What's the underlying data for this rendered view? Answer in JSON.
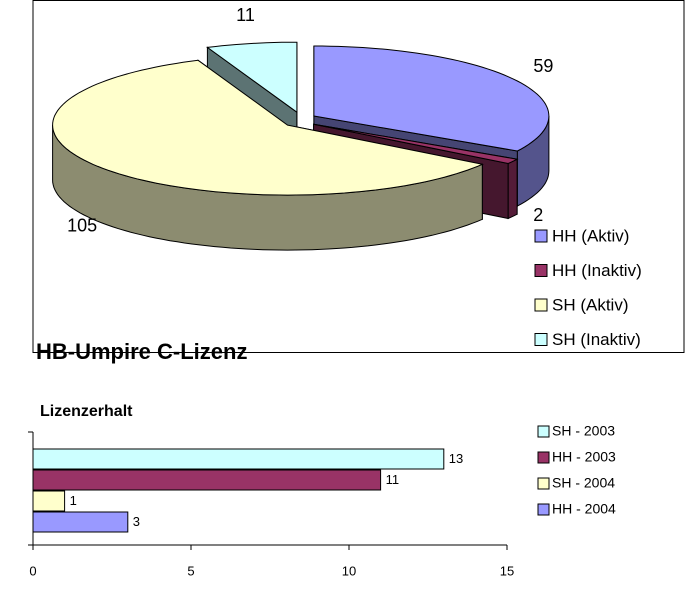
{
  "chart_data": [
    {
      "type": "pie",
      "title": "HB-Umpire C-Lizenz",
      "categories": [
        "HH (Aktiv)",
        "HH (Inaktiv)",
        "SH (Aktiv)",
        "SH (Inaktiv)"
      ],
      "values": [
        59,
        2,
        105,
        11
      ],
      "colors": [
        "#9999ff",
        "#993366",
        "#ffffcc",
        "#ccffff"
      ]
    },
    {
      "type": "bar",
      "title": "Lizenzerhalt",
      "series": [
        {
          "name": "SH - 2003",
          "color": "#ccffff",
          "values": [
            13
          ]
        },
        {
          "name": "HH - 2003",
          "color": "#993366",
          "values": [
            11
          ]
        },
        {
          "name": "SH - 2004",
          "color": "#ffffcc",
          "values": [
            1
          ]
        },
        {
          "name": "HH - 2004",
          "color": "#9999ff",
          "values": [
            3
          ]
        }
      ],
      "xlim": [
        0,
        15
      ],
      "xticks": [
        0,
        5,
        10,
        15
      ]
    }
  ]
}
